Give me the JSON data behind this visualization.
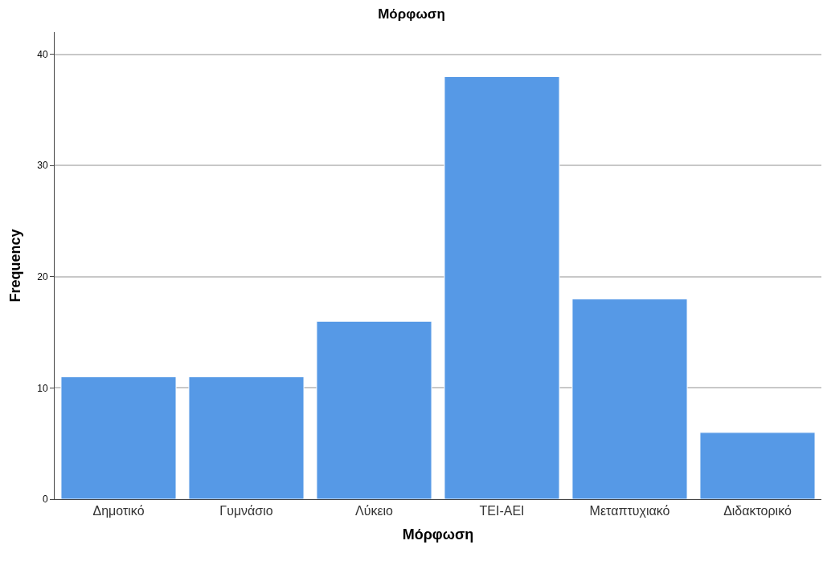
{
  "chart_data": {
    "type": "bar",
    "title": "Μόρφωση",
    "xlabel": "Μόρφωση",
    "ylabel": "Frequency",
    "categories": [
      "Δημοτικό",
      "Γυμνάσιο",
      "Λύκειο",
      "ΤΕΙ-ΑΕΙ",
      "Μεταπτυχιακό",
      "Διδακτορικό"
    ],
    "values": [
      11,
      11,
      16,
      38,
      18,
      6
    ],
    "color": "#5699e6",
    "ylim": [
      0,
      42
    ],
    "yticks": [
      0,
      10,
      20,
      30,
      40
    ],
    "grid": "y"
  }
}
